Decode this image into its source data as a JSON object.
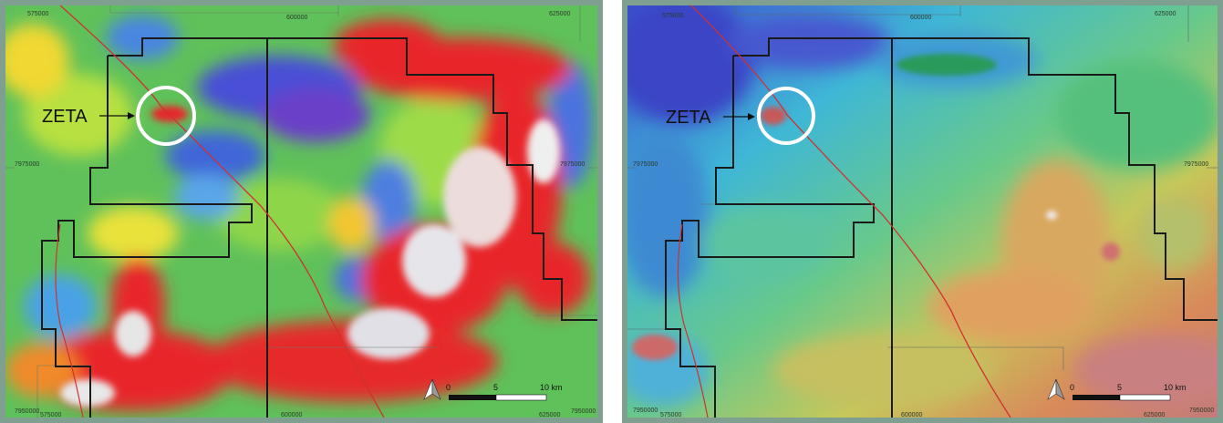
{
  "feature_label": "ZETA",
  "coordinates": {
    "easting_west": "575000",
    "easting_mid": "600000",
    "easting_east": "625000",
    "northing_mid": "7975000",
    "northing_bottom": "7950000"
  },
  "scale_bar": {
    "tick_0": "0",
    "tick_5": "5",
    "tick_10": "10 km"
  },
  "colors": {
    "frame": "#7f9f91",
    "tenement_outline": "#1a1a1a",
    "road": "#d03030",
    "marker_circle": "#ffffff"
  },
  "panels": [
    {
      "name": "left-map",
      "style": "red-green-blue anomaly image"
    },
    {
      "name": "right-map",
      "style": "blue-green-red shaded relief image"
    }
  ]
}
